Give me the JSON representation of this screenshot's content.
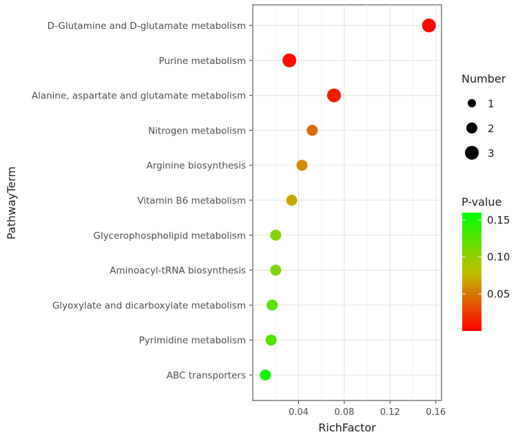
{
  "chart_data": {
    "type": "scatter",
    "title": "",
    "xlabel": "RichFactor",
    "ylabel": "PathwayTerm",
    "xlim": [
      0.0,
      0.165
    ],
    "xticks": [
      0.04,
      0.08,
      0.12,
      0.16
    ],
    "xtick_labels": [
      "0.04",
      "0.08",
      "0.12",
      "0.16"
    ],
    "grid": true,
    "categories": [
      "D-Glutamine and D-glutamate metabolism",
      "Purine metabolism",
      "Alanine, aspartate and glutamate metabolism",
      "Nitrogen metabolism",
      "Arginine biosynthesis",
      "Vitamin B6 metabolism",
      "Glycerophospholipid metabolism",
      "Aminoacyl-tRNA biosynthesis",
      "Glyoxylate and dicarboxylate metabolism",
      "Pyrimidine metabolism",
      "ABC transporters"
    ],
    "points": [
      {
        "term": "D-Glutamine and D-glutamate metabolism",
        "rich_factor": 0.154,
        "number": 3,
        "p_value": 0.003
      },
      {
        "term": "Purine metabolism",
        "rich_factor": 0.032,
        "number": 3,
        "p_value": 0.005
      },
      {
        "term": "Alanine, aspartate and glutamate metabolism",
        "rich_factor": 0.071,
        "number": 3,
        "p_value": 0.012
      },
      {
        "term": "Nitrogen metabolism",
        "rich_factor": 0.052,
        "number": 2,
        "p_value": 0.045
      },
      {
        "term": "Arginine biosynthesis",
        "rich_factor": 0.043,
        "number": 2,
        "p_value": 0.058
      },
      {
        "term": "Vitamin B6 metabolism",
        "rich_factor": 0.034,
        "number": 2,
        "p_value": 0.07
      },
      {
        "term": "Glycerophospholipid metabolism",
        "rich_factor": 0.02,
        "number": 2,
        "p_value": 0.105
      },
      {
        "term": "Aminoacyl-tRNA biosynthesis",
        "rich_factor": 0.02,
        "number": 2,
        "p_value": 0.107
      },
      {
        "term": "Glyoxylate and dicarboxylate metabolism",
        "rich_factor": 0.017,
        "number": 2,
        "p_value": 0.123
      },
      {
        "term": "Pyrimidine metabolism",
        "rich_factor": 0.016,
        "number": 2,
        "p_value": 0.127
      },
      {
        "term": "ABC transporters",
        "rich_factor": 0.011,
        "number": 2,
        "p_value": 0.153
      }
    ],
    "size_legend": {
      "title": "Number",
      "values": [
        1,
        2,
        3
      ],
      "labels": [
        "1",
        "2",
        "3"
      ]
    },
    "color_legend": {
      "title": "P-value",
      "range": [
        0.0,
        0.16
      ],
      "ticks": [
        0.05,
        0.1,
        0.15
      ],
      "tick_labels": [
        "0.05",
        "0.10",
        "0.15"
      ],
      "low_color": "#ff0000",
      "mid_color": "#bfbf00",
      "high_color": "#00ff00"
    },
    "legend_placement": "right"
  }
}
